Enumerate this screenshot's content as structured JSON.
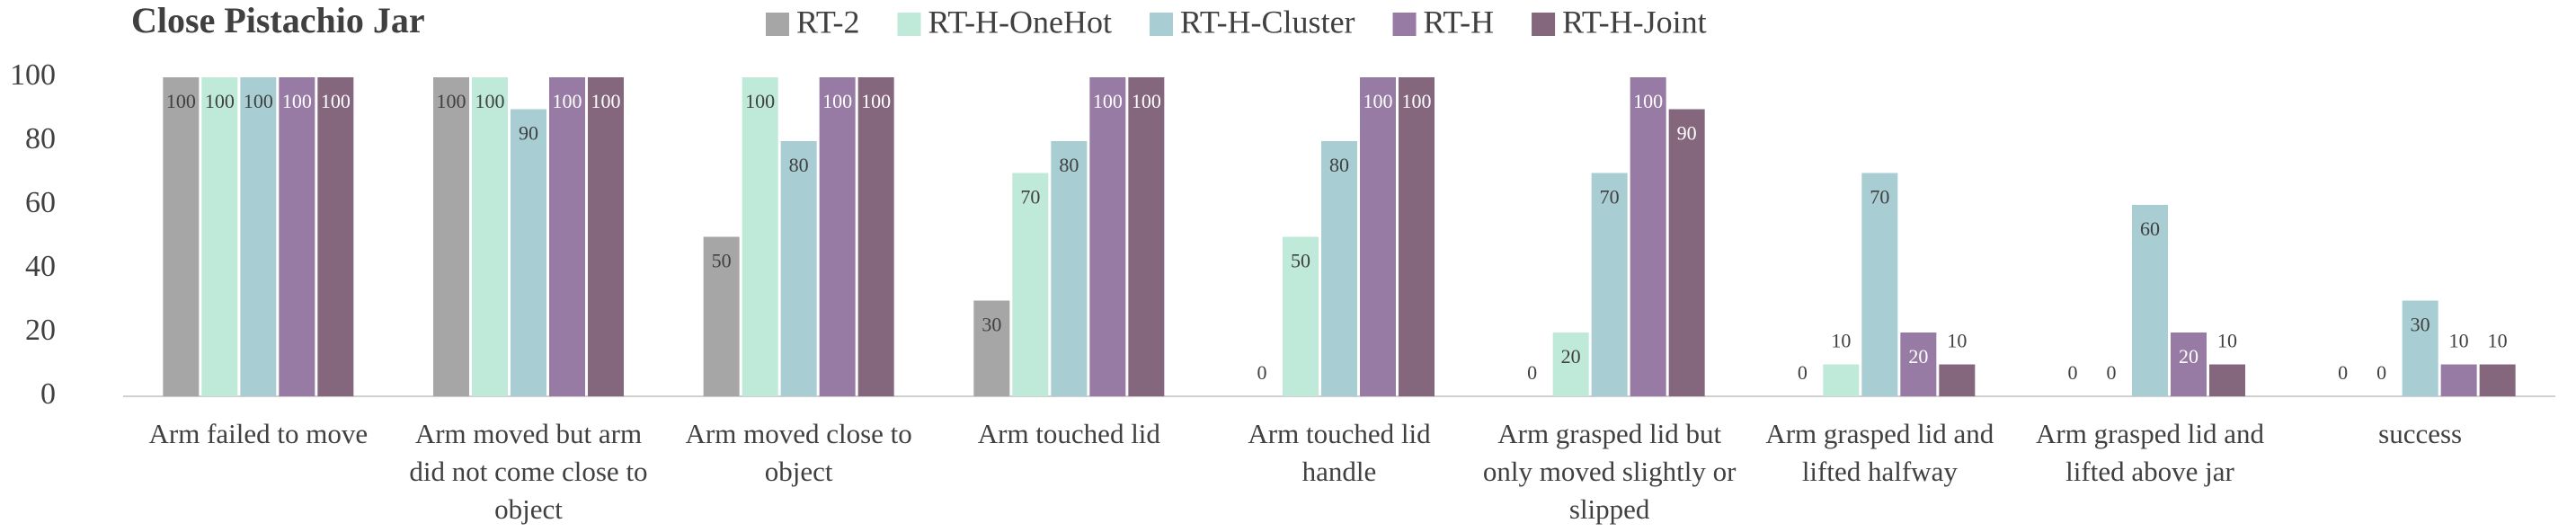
{
  "chart_data": {
    "type": "bar",
    "title": "Close Pistachio Jar",
    "categories": [
      "Arm failed to move",
      "Arm moved but arm did not come close to object",
      "Arm moved close to object",
      "Arm touched lid",
      "Arm touched lid handle",
      "Arm grasped lid but only moved slightly or slipped",
      "Arm grasped lid and lifted halfway",
      "Arm grasped lid and lifted above jar",
      "success"
    ],
    "series": [
      {
        "name": "RT-2",
        "color": "#a6a6a6",
        "values": [
          100,
          100,
          50,
          30,
          0,
          0,
          0,
          0,
          0
        ]
      },
      {
        "name": "RT-H-OneHot",
        "color": "#bfe9d8",
        "values": [
          100,
          100,
          100,
          70,
          50,
          20,
          10,
          0,
          0
        ]
      },
      {
        "name": "RT-H-Cluster",
        "color": "#a8cdd2",
        "values": [
          100,
          90,
          80,
          80,
          80,
          70,
          70,
          60,
          30
        ]
      },
      {
        "name": "RT-H",
        "color": "#987ba5",
        "values": [
          100,
          100,
          100,
          100,
          100,
          100,
          20,
          20,
          10
        ]
      },
      {
        "name": "RT-H-Joint",
        "color": "#84667d",
        "values": [
          100,
          100,
          100,
          100,
          100,
          90,
          10,
          10,
          10
        ]
      }
    ],
    "ylim": [
      0,
      100
    ],
    "yticks": [
      0,
      20,
      40,
      60,
      80,
      100
    ],
    "grid": false,
    "legend": "top"
  }
}
